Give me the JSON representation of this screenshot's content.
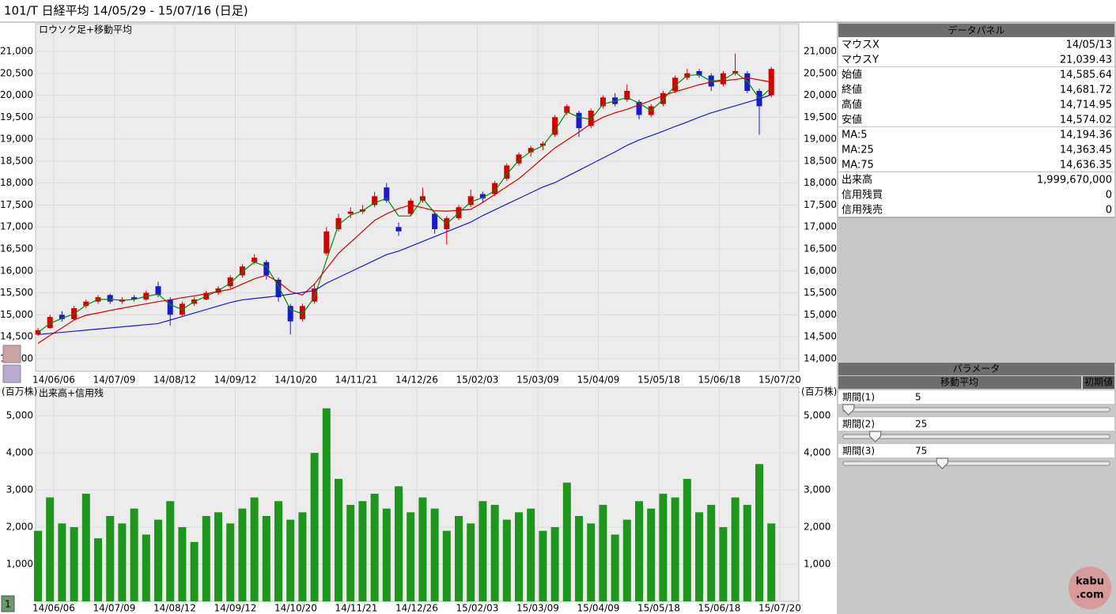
{
  "header": {
    "title": "101/T 日経平均  14/05/29 - 15/07/16 (日足)"
  },
  "chart_data": [
    {
      "type": "candlestick",
      "title": "ロウソク足+移動平均",
      "up_color": "#d40000",
      "down_color": "#1a1acc",
      "open": [
        14550,
        14700,
        15000,
        14900,
        15200,
        15300,
        15450,
        15300,
        15400,
        15350,
        15650,
        15350,
        15000,
        15250,
        15350,
        15500,
        15650,
        15900,
        16200,
        16200,
        15800,
        15200,
        14900,
        15300,
        16400,
        16950,
        17300,
        17350,
        17500,
        17900,
        17000,
        17300,
        17600,
        17300,
        16950,
        17200,
        17500,
        17750,
        17750,
        18100,
        18450,
        18700,
        18850,
        19100,
        19600,
        19600,
        19300,
        19750,
        19950,
        19900,
        19850,
        19550,
        19800,
        20100,
        20400,
        20550,
        20450,
        20250,
        20500,
        20500,
        20100,
        20000
      ],
      "high": [
        14700,
        15000,
        15080,
        15200,
        15350,
        15450,
        15480,
        15400,
        15450,
        15550,
        15750,
        15400,
        15300,
        15400,
        15550,
        15650,
        15900,
        16150,
        16380,
        16250,
        15850,
        15250,
        15250,
        15700,
        17000,
        17300,
        17450,
        17500,
        17800,
        18000,
        17100,
        17650,
        17900,
        17350,
        17250,
        17500,
        17850,
        17800,
        18050,
        18450,
        18700,
        18850,
        18950,
        19550,
        19800,
        19650,
        19700,
        20000,
        20050,
        20250,
        19900,
        19800,
        20100,
        20450,
        20600,
        20600,
        20500,
        20550,
        20950,
        20550,
        20150,
        20650
      ],
      "low": [
        14520,
        14680,
        14850,
        14880,
        15150,
        15250,
        15250,
        15250,
        15300,
        15320,
        15400,
        14750,
        14950,
        15200,
        15330,
        15450,
        15600,
        15850,
        16150,
        15800,
        15300,
        14550,
        14850,
        15250,
        16350,
        16900,
        17200,
        17300,
        17450,
        17550,
        16800,
        17250,
        17550,
        16850,
        16600,
        17150,
        17450,
        17550,
        17700,
        18050,
        18400,
        18600,
        18750,
        19050,
        19550,
        19050,
        19250,
        19700,
        19750,
        19850,
        19450,
        19500,
        19750,
        20050,
        20350,
        20400,
        20100,
        20200,
        20450,
        20050,
        19100,
        19950
      ],
      "close": [
        14650,
        14950,
        14900,
        15150,
        15300,
        15400,
        15300,
        15350,
        15350,
        15500,
        15450,
        15000,
        15250,
        15350,
        15500,
        15600,
        15850,
        16100,
        16300,
        15900,
        15400,
        14850,
        15200,
        15600,
        16900,
        17200,
        17350,
        17400,
        17700,
        17600,
        16900,
        17600,
        17700,
        16950,
        17200,
        17450,
        17700,
        17650,
        18000,
        18400,
        18650,
        18800,
        18900,
        19500,
        19750,
        19250,
        19650,
        19950,
        19800,
        20100,
        19550,
        19750,
        20050,
        20400,
        20500,
        20450,
        20200,
        20500,
        20550,
        20100,
        19750,
        20600
      ],
      "lines": [
        {
          "color": "#008a00",
          "values": [
            14600,
            14800,
            14920,
            15020,
            15220,
            15350,
            15350,
            15330,
            15350,
            15420,
            15470,
            15230,
            15120,
            15300,
            15420,
            15550,
            15720,
            15980,
            16200,
            16100,
            15650,
            15120,
            15020,
            15400,
            16250,
            17050,
            17270,
            17370,
            17550,
            17650,
            17250,
            17250,
            17650,
            17320,
            17070,
            17320,
            17570,
            17670,
            17820,
            18200,
            18520,
            18720,
            18850,
            19200,
            19620,
            19500,
            19450,
            19800,
            19870,
            19950,
            19820,
            19650,
            19900,
            20220,
            20450,
            20470,
            20320,
            20350,
            20520,
            20320,
            19920,
            20170
          ]
        },
        {
          "color": "#d40000",
          "values": [
            14350,
            14530,
            14700,
            14880,
            14990,
            15040,
            15100,
            15150,
            15200,
            15250,
            15300,
            15340,
            15390,
            15430,
            15480,
            15530,
            15580,
            15700,
            15820,
            15900,
            15750,
            15530,
            15450,
            15700,
            16050,
            16400,
            16650,
            16900,
            17150,
            17300,
            17420,
            17500,
            17440,
            17370,
            17360,
            17380,
            17400,
            17560,
            17740,
            17920,
            18100,
            18330,
            18570,
            18800,
            18980,
            19160,
            19350,
            19500,
            19600,
            19680,
            19780,
            19880,
            19990,
            20080,
            20160,
            20240,
            20300,
            20330,
            20360,
            20400,
            20350,
            20300
          ]
        },
        {
          "color": "#1a1acc",
          "values": [
            14550,
            14575,
            14600,
            14625,
            14650,
            14675,
            14700,
            14725,
            14750,
            14775,
            14800,
            14880,
            14960,
            15040,
            15120,
            15200,
            15280,
            15340,
            15370,
            15400,
            15430,
            15470,
            15510,
            15550,
            15720,
            15850,
            15980,
            16110,
            16240,
            16370,
            16450,
            16560,
            16670,
            16780,
            16890,
            17000,
            17110,
            17260,
            17390,
            17520,
            17650,
            17780,
            17910,
            18010,
            18150,
            18290,
            18430,
            18570,
            18710,
            18860,
            18980,
            19080,
            19180,
            19290,
            19390,
            19500,
            19600,
            19680,
            19760,
            19840,
            19920,
            20010
          ]
        }
      ],
      "ylim": [
        13710,
        21630
      ],
      "yticks": [
        {
          "value": 14000,
          "label": "14,000"
        },
        {
          "value": 14500,
          "label": "14,500"
        },
        {
          "value": 15000,
          "label": "15,000"
        },
        {
          "value": 15500,
          "label": "15,500"
        },
        {
          "value": 16000,
          "label": "16,000"
        },
        {
          "value": 16500,
          "label": "16,500"
        },
        {
          "value": 17000,
          "label": "17,000"
        },
        {
          "value": 17500,
          "label": "17,500"
        },
        {
          "value": 18000,
          "label": "18,000"
        },
        {
          "value": 18500,
          "label": "18,500"
        },
        {
          "value": 19000,
          "label": "19,000"
        },
        {
          "value": 19500,
          "label": "19,500"
        },
        {
          "value": 20000,
          "label": "20,000"
        },
        {
          "value": 20500,
          "label": "20,500"
        },
        {
          "value": 21000,
          "label": "21,000"
        }
      ],
      "x_labels": [
        "14/06/06",
        "14/07/09",
        "14/08/12",
        "14/09/12",
        "14/10/20",
        "14/11/21",
        "14/12/26",
        "15/02/03",
        "15/03/09",
        "15/04/09",
        "15/05/18",
        "15/06/18",
        "15/07/20"
      ]
    },
    {
      "type": "bar",
      "title": "出来高+信用残",
      "unit_label": "(百万株)",
      "color": "#1e961e",
      "values": [
        1900,
        2800,
        2100,
        2000,
        2900,
        1700,
        2300,
        2100,
        2500,
        1800,
        2200,
        2700,
        2000,
        1600,
        2300,
        2400,
        2100,
        2500,
        2800,
        2300,
        2700,
        2200,
        2400,
        4000,
        5200,
        3300,
        2600,
        2700,
        2900,
        2500,
        3100,
        2400,
        2800,
        2500,
        1900,
        2300,
        2100,
        2700,
        2600,
        2200,
        2400,
        2500,
        1900,
        2000,
        3200,
        2300,
        2100,
        2600,
        1800,
        2200,
        2700,
        2500,
        2900,
        2800,
        3300,
        2400,
        2600,
        2000,
        2800,
        2600,
        3700,
        2100
      ],
      "ylim": [
        0,
        5770
      ],
      "yticks": [
        {
          "value": 1000,
          "label": "1,000"
        },
        {
          "value": 2000,
          "label": "2,000"
        },
        {
          "value": 3000,
          "label": "3,000"
        },
        {
          "value": 4000,
          "label": "4,000"
        },
        {
          "value": 5000,
          "label": "5,000"
        }
      ],
      "x_labels": [
        "14/06/06",
        "14/07/09",
        "14/08/12",
        "14/09/12",
        "14/10/20",
        "14/11/21",
        "14/12/26",
        "15/02/03",
        "15/03/09",
        "15/04/09",
        "15/05/18",
        "15/06/18",
        "15/07/20"
      ]
    }
  ],
  "page_button": "1",
  "data_panel": {
    "title": "データパネル",
    "groups": [
      [
        {
          "label": "マウスX",
          "value": "14/05/13",
          "color": "#000000"
        },
        {
          "label": "マウスY",
          "value": "21,039.43",
          "color": "#000000"
        }
      ],
      [
        {
          "label": "始値",
          "value": "14,585.64",
          "color": "#000000"
        },
        {
          "label": "終値",
          "value": "14,681.72",
          "color": "#000000"
        },
        {
          "label": "高値",
          "value": "14,714.95",
          "color": "#000000"
        },
        {
          "label": "安値",
          "value": "14,574.02",
          "color": "#000000"
        }
      ],
      [
        {
          "label": "MA:5",
          "value": "14,194.36",
          "color": "#008a00"
        },
        {
          "label": "MA:25",
          "value": "14,363.45",
          "color": "#d40000"
        },
        {
          "label": "MA:75",
          "value": "14,636.35",
          "color": "#1a1acc"
        }
      ],
      [
        {
          "label": "出来高",
          "value": "1,999,670,000",
          "color": "#008a00"
        },
        {
          "label": "信用残買",
          "value": "0",
          "color": "#d40000"
        },
        {
          "label": "信用残売",
          "value": "0",
          "color": "#1a1acc"
        }
      ]
    ]
  },
  "parameters": {
    "title": "パラメータ",
    "tab": "移動平均",
    "reset_button": "初期値",
    "slider_range": [
      1,
      200
    ],
    "items": [
      {
        "label": "期間(1)",
        "value": 5,
        "color": "#008a00"
      },
      {
        "label": "期間(2)",
        "value": 25,
        "color": "#d40000"
      },
      {
        "label": "期間(3)",
        "value": 75,
        "color": "#1a1acc"
      }
    ]
  },
  "logo": [
    "kabu",
    ".com"
  ]
}
